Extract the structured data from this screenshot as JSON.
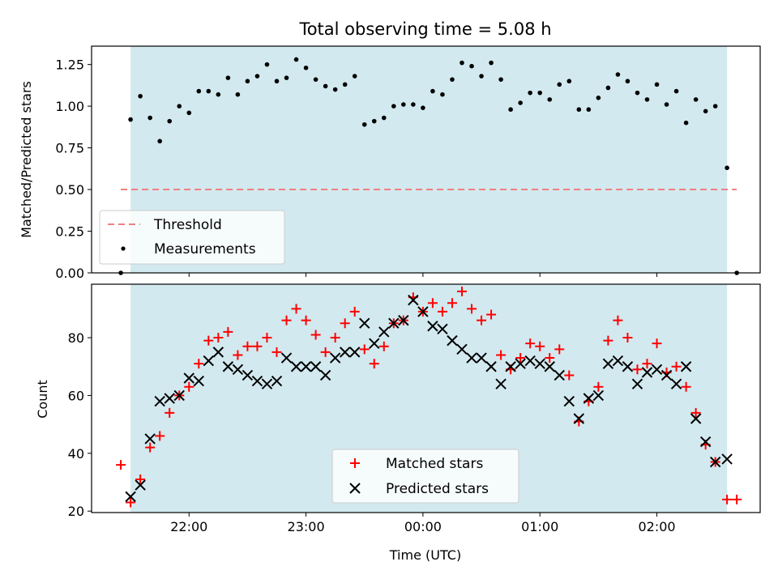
{
  "chart_data": [
    {
      "type": "scatter",
      "title": "Total observing time = 5.08 h",
      "xlabel": "",
      "ylabel": "Matched/Predicted stars",
      "ylim": [
        0,
        1.36
      ],
      "yticks": [
        "0.00",
        "0.25",
        "0.50",
        "0.75",
        "1.00",
        "1.25"
      ],
      "ytick_values": [
        0,
        0.25,
        0.5,
        0.75,
        1.0,
        1.25
      ],
      "shaded_region": {
        "start": "21:30",
        "end": "02:36",
        "color": "#d2e9ef"
      },
      "threshold": {
        "name": "Threshold",
        "value": 0.5,
        "x_start": "21:25",
        "x_end": "02:41",
        "color": "#f08080"
      },
      "series": [
        {
          "name": "Measurements",
          "color": "#000000",
          "points": [
            [
              "21:25",
              0.0
            ],
            [
              "21:30",
              0.92
            ],
            [
              "21:35",
              1.06
            ],
            [
              "21:40",
              0.93
            ],
            [
              "21:45",
              0.79
            ],
            [
              "21:50",
              0.91
            ],
            [
              "21:55",
              1.0
            ],
            [
              "22:00",
              0.96
            ],
            [
              "22:05",
              1.09
            ],
            [
              "22:10",
              1.09
            ],
            [
              "22:15",
              1.07
            ],
            [
              "22:20",
              1.17
            ],
            [
              "22:25",
              1.07
            ],
            [
              "22:30",
              1.15
            ],
            [
              "22:35",
              1.18
            ],
            [
              "22:40",
              1.25
            ],
            [
              "22:45",
              1.15
            ],
            [
              "22:50",
              1.17
            ],
            [
              "22:55",
              1.28
            ],
            [
              "23:00",
              1.23
            ],
            [
              "23:05",
              1.16
            ],
            [
              "23:10",
              1.12
            ],
            [
              "23:15",
              1.1
            ],
            [
              "23:20",
              1.13
            ],
            [
              "23:25",
              1.18
            ],
            [
              "23:30",
              0.89
            ],
            [
              "23:35",
              0.91
            ],
            [
              "23:40",
              0.93
            ],
            [
              "23:45",
              1.0
            ],
            [
              "23:50",
              1.01
            ],
            [
              "23:55",
              1.01
            ],
            [
              "00:00",
              0.99
            ],
            [
              "00:05",
              1.09
            ],
            [
              "00:10",
              1.07
            ],
            [
              "00:15",
              1.16
            ],
            [
              "00:20",
              1.26
            ],
            [
              "00:25",
              1.24
            ],
            [
              "00:30",
              1.18
            ],
            [
              "00:35",
              1.26
            ],
            [
              "00:40",
              1.16
            ],
            [
              "00:45",
              0.98
            ],
            [
              "00:50",
              1.02
            ],
            [
              "00:55",
              1.08
            ],
            [
              "01:00",
              1.08
            ],
            [
              "01:05",
              1.04
            ],
            [
              "01:10",
              1.13
            ],
            [
              "01:15",
              1.15
            ],
            [
              "01:20",
              0.98
            ],
            [
              "01:25",
              0.98
            ],
            [
              "01:30",
              1.05
            ],
            [
              "01:35",
              1.11
            ],
            [
              "01:40",
              1.19
            ],
            [
              "01:45",
              1.15
            ],
            [
              "01:50",
              1.08
            ],
            [
              "01:55",
              1.04
            ],
            [
              "02:00",
              1.13
            ],
            [
              "02:05",
              1.01
            ],
            [
              "02:10",
              1.09
            ],
            [
              "02:15",
              0.9
            ],
            [
              "02:20",
              1.04
            ],
            [
              "02:25",
              0.97
            ],
            [
              "02:30",
              1.0
            ],
            [
              "02:36",
              0.63
            ],
            [
              "02:41",
              0.0
            ]
          ]
        }
      ],
      "legend": {
        "position": "lower-left",
        "entries": [
          "Threshold",
          "Measurements"
        ]
      }
    },
    {
      "type": "scatter",
      "title": "",
      "xlabel": "Time (UTC)",
      "ylabel": "Count",
      "ylim": [
        19.5,
        98.5
      ],
      "yticks": [
        "20",
        "40",
        "60",
        "80"
      ],
      "ytick_values": [
        20,
        40,
        60,
        80
      ],
      "xlim": [
        "21:10",
        "02:53"
      ],
      "xticks": [
        "22:00",
        "23:00",
        "00:00",
        "01:00",
        "02:00"
      ],
      "shaded_region": {
        "start": "21:30",
        "end": "02:36",
        "color": "#d2e9ef"
      },
      "series": [
        {
          "name": "Matched stars",
          "marker": "plus",
          "color": "#ff0000",
          "points": [
            [
              "21:25",
              36
            ],
            [
              "21:30",
              23
            ],
            [
              "21:35",
              31
            ],
            [
              "21:40",
              42
            ],
            [
              "21:45",
              46
            ],
            [
              "21:50",
              54
            ],
            [
              "21:55",
              60
            ],
            [
              "22:00",
              63
            ],
            [
              "22:05",
              71
            ],
            [
              "22:10",
              79
            ],
            [
              "22:15",
              80
            ],
            [
              "22:20",
              82
            ],
            [
              "22:25",
              74
            ],
            [
              "22:30",
              77
            ],
            [
              "22:35",
              77
            ],
            [
              "22:40",
              80
            ],
            [
              "22:45",
              75
            ],
            [
              "22:50",
              86
            ],
            [
              "22:55",
              90
            ],
            [
              "23:00",
              86
            ],
            [
              "23:05",
              81
            ],
            [
              "23:10",
              75
            ],
            [
              "23:15",
              80
            ],
            [
              "23:20",
              85
            ],
            [
              "23:25",
              89
            ],
            [
              "23:30",
              76
            ],
            [
              "23:35",
              71
            ],
            [
              "23:40",
              77
            ],
            [
              "23:45",
              85
            ],
            [
              "23:50",
              86
            ],
            [
              "23:55",
              94
            ],
            [
              "00:00",
              89
            ],
            [
              "00:05",
              92
            ],
            [
              "00:10",
              89
            ],
            [
              "00:15",
              92
            ],
            [
              "00:20",
              96
            ],
            [
              "00:25",
              90
            ],
            [
              "00:30",
              86
            ],
            [
              "00:35",
              88
            ],
            [
              "00:40",
              74
            ],
            [
              "00:45",
              69
            ],
            [
              "00:50",
              73
            ],
            [
              "00:55",
              78
            ],
            [
              "01:00",
              77
            ],
            [
              "01:05",
              73
            ],
            [
              "01:10",
              76
            ],
            [
              "01:15",
              67
            ],
            [
              "01:20",
              51
            ],
            [
              "01:25",
              58
            ],
            [
              "01:30",
              63
            ],
            [
              "01:35",
              79
            ],
            [
              "01:40",
              86
            ],
            [
              "01:45",
              80
            ],
            [
              "01:50",
              69
            ],
            [
              "01:55",
              71
            ],
            [
              "02:00",
              78
            ],
            [
              "02:05",
              68
            ],
            [
              "02:10",
              70
            ],
            [
              "02:15",
              63
            ],
            [
              "02:20",
              54
            ],
            [
              "02:25",
              43
            ],
            [
              "02:30",
              37
            ],
            [
              "02:36",
              24
            ],
            [
              "02:41",
              24
            ]
          ]
        },
        {
          "name": "Predicted stars",
          "marker": "x",
          "color": "#000000",
          "points": [
            [
              "21:30",
              25
            ],
            [
              "21:35",
              29
            ],
            [
              "21:40",
              45
            ],
            [
              "21:45",
              58
            ],
            [
              "21:50",
              59
            ],
            [
              "21:55",
              60
            ],
            [
              "22:00",
              66
            ],
            [
              "22:05",
              65
            ],
            [
              "22:10",
              72
            ],
            [
              "22:15",
              75
            ],
            [
              "22:20",
              70
            ],
            [
              "22:25",
              69
            ],
            [
              "22:30",
              67
            ],
            [
              "22:35",
              65
            ],
            [
              "22:40",
              64
            ],
            [
              "22:45",
              65
            ],
            [
              "22:50",
              73
            ],
            [
              "22:55",
              70
            ],
            [
              "23:00",
              70
            ],
            [
              "23:05",
              70
            ],
            [
              "23:10",
              67
            ],
            [
              "23:15",
              73
            ],
            [
              "23:20",
              75
            ],
            [
              "23:25",
              75
            ],
            [
              "23:30",
              85
            ],
            [
              "23:35",
              78
            ],
            [
              "23:40",
              82
            ],
            [
              "23:45",
              85
            ],
            [
              "23:50",
              86
            ],
            [
              "23:55",
              93
            ],
            [
              "00:00",
              89
            ],
            [
              "00:05",
              84
            ],
            [
              "00:10",
              83
            ],
            [
              "00:15",
              79
            ],
            [
              "00:20",
              76
            ],
            [
              "00:25",
              73
            ],
            [
              "00:30",
              73
            ],
            [
              "00:35",
              70
            ],
            [
              "00:40",
              64
            ],
            [
              "00:45",
              70
            ],
            [
              "00:50",
              71
            ],
            [
              "00:55",
              72
            ],
            [
              "01:00",
              71
            ],
            [
              "01:05",
              70
            ],
            [
              "01:10",
              67
            ],
            [
              "01:15",
              58
            ],
            [
              "01:20",
              52
            ],
            [
              "01:25",
              59
            ],
            [
              "01:30",
              60
            ],
            [
              "01:35",
              71
            ],
            [
              "01:40",
              72
            ],
            [
              "01:45",
              70
            ],
            [
              "01:50",
              64
            ],
            [
              "01:55",
              68
            ],
            [
              "02:00",
              69
            ],
            [
              "02:05",
              67
            ],
            [
              "02:10",
              64
            ],
            [
              "02:15",
              70
            ],
            [
              "02:20",
              52
            ],
            [
              "02:25",
              44
            ],
            [
              "02:30",
              37
            ],
            [
              "02:36",
              38
            ]
          ]
        }
      ],
      "legend": {
        "position": "lower-center",
        "entries": [
          "Matched stars",
          "Predicted stars"
        ]
      }
    }
  ]
}
